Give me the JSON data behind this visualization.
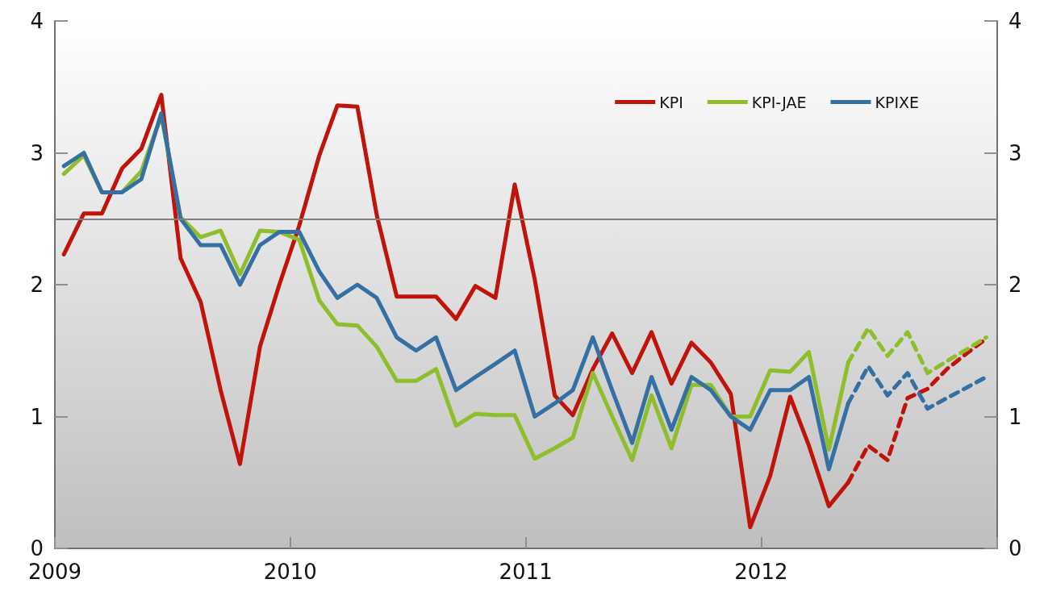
{
  "chart_data": {
    "type": "line",
    "x": [
      "2009-01-15",
      "2009-02-15",
      "2009-03-15",
      "2009-04-15",
      "2009-05-15",
      "2009-06-15",
      "2009-07-15",
      "2009-08-15",
      "2009-09-15",
      "2009-10-15",
      "2009-11-15",
      "2009-12-15",
      "2010-01-15",
      "2010-02-15",
      "2010-03-15",
      "2010-04-15",
      "2010-05-15",
      "2010-06-15",
      "2010-07-15",
      "2010-08-15",
      "2010-09-15",
      "2010-10-15",
      "2010-11-15",
      "2010-12-15",
      "2011-01-15",
      "2011-02-15",
      "2011-03-15",
      "2011-04-15",
      "2011-05-15",
      "2011-06-15",
      "2011-07-15",
      "2011-08-15",
      "2011-09-15",
      "2011-10-15",
      "2011-11-15",
      "2011-12-15",
      "2012-01-15",
      "2012-02-15",
      "2012-03-15",
      "2012-04-15",
      "2012-05-15",
      "2012-06-15",
      "2012-07-15",
      "2012-08-15",
      "2012-09-15",
      "2012-10-15",
      "2012-11-15",
      "2012-12-15"
    ],
    "series": [
      {
        "name": "KPI",
        "color": "#c0140a",
        "line_style": "solid",
        "values": [
          2.23,
          2.54,
          2.54,
          2.88,
          3.03,
          3.44,
          2.2,
          1.87,
          1.2,
          0.64,
          1.53,
          2.0,
          2.45,
          2.98,
          3.36,
          3.35,
          2.53,
          1.91,
          1.91,
          1.91,
          1.74,
          1.99,
          1.9,
          2.76,
          2.04,
          1.16,
          1.01,
          1.36,
          1.63,
          1.33,
          1.64,
          1.25,
          1.56,
          1.41,
          1.17,
          0.16,
          0.55,
          1.15,
          0.78,
          0.32,
          0.5,
          null,
          null,
          null,
          null,
          null,
          null,
          null
        ]
      },
      {
        "name": "KPI-JAE",
        "color": "#8fbe2c",
        "line_style": "solid",
        "values": [
          2.84,
          2.98,
          2.7,
          2.7,
          2.86,
          3.28,
          2.51,
          2.36,
          2.41,
          2.08,
          2.41,
          2.4,
          2.34,
          1.88,
          1.7,
          1.69,
          1.53,
          1.27,
          1.27,
          1.36,
          0.93,
          1.02,
          1.01,
          1.01,
          0.68,
          0.76,
          0.84,
          1.33,
          1.0,
          0.67,
          1.16,
          0.76,
          1.24,
          1.24,
          1.0,
          1.0,
          1.35,
          1.34,
          1.49,
          0.75,
          1.41,
          null,
          null,
          null,
          null,
          null,
          null,
          null
        ]
      },
      {
        "name": "KPIXE",
        "color": "#3470a3",
        "line_style": "solid",
        "values": [
          2.9,
          3.0,
          2.7,
          2.7,
          2.8,
          3.3,
          2.5,
          2.3,
          2.3,
          2.0,
          2.3,
          2.4,
          2.4,
          2.1,
          1.9,
          2.0,
          1.9,
          1.6,
          1.5,
          1.6,
          1.2,
          1.3,
          1.4,
          1.5,
          1.0,
          1.1,
          1.2,
          1.6,
          1.2,
          0.8,
          1.3,
          0.9,
          1.3,
          1.2,
          1.0,
          0.9,
          1.2,
          1.2,
          1.3,
          0.6,
          1.1,
          null,
          null,
          null,
          null,
          null,
          null,
          null
        ]
      },
      {
        "color": "#c0140a",
        "line_style": "dashed",
        "values": [
          null,
          null,
          null,
          null,
          null,
          null,
          null,
          null,
          null,
          null,
          null,
          null,
          null,
          null,
          null,
          null,
          null,
          null,
          null,
          null,
          null,
          null,
          null,
          null,
          null,
          null,
          null,
          null,
          null,
          null,
          null,
          null,
          null,
          null,
          null,
          null,
          null,
          null,
          null,
          null,
          0.5,
          0.78,
          0.67,
          1.14,
          1.21,
          1.36,
          1.48,
          1.59
        ]
      },
      {
        "color": "#8fbe2c",
        "line_style": "dashed",
        "values": [
          null,
          null,
          null,
          null,
          null,
          null,
          null,
          null,
          null,
          null,
          null,
          null,
          null,
          null,
          null,
          null,
          null,
          null,
          null,
          null,
          null,
          null,
          null,
          null,
          null,
          null,
          null,
          null,
          null,
          null,
          null,
          null,
          null,
          null,
          null,
          null,
          null,
          null,
          null,
          null,
          1.41,
          1.67,
          1.46,
          1.64,
          1.33,
          1.42,
          1.51,
          1.6
        ]
      },
      {
        "color": "#3470a3",
        "line_style": "dashed",
        "values": [
          null,
          null,
          null,
          null,
          null,
          null,
          null,
          null,
          null,
          null,
          null,
          null,
          null,
          null,
          null,
          null,
          null,
          null,
          null,
          null,
          null,
          null,
          null,
          null,
          null,
          null,
          null,
          null,
          null,
          null,
          null,
          null,
          null,
          null,
          null,
          null,
          null,
          null,
          null,
          null,
          1.1,
          1.38,
          1.16,
          1.33,
          1.06,
          1.14,
          1.22,
          1.3
        ]
      }
    ],
    "xlim": [
      "2009-01-01",
      "2013-01-01"
    ],
    "xticks": [
      {
        "value": "2009-01-01",
        "label": "2009"
      },
      {
        "value": "2010-01-01",
        "label": "2010"
      },
      {
        "value": "2011-01-01",
        "label": "2011"
      },
      {
        "value": "2012-01-01",
        "label": "2012"
      },
      {
        "value": "2013-01-01",
        "label": null
      }
    ],
    "ylim": [
      0,
      4
    ],
    "yticks": [
      0,
      1,
      2,
      3,
      4
    ],
    "y2lim": [
      0,
      4
    ],
    "y2ticks": [
      0,
      1,
      2,
      3,
      4
    ],
    "ref_lines": [
      {
        "axis": "y",
        "value": 2.5,
        "color": "#808080"
      }
    ],
    "grid": false,
    "legend": "top right",
    "marker": "none"
  }
}
